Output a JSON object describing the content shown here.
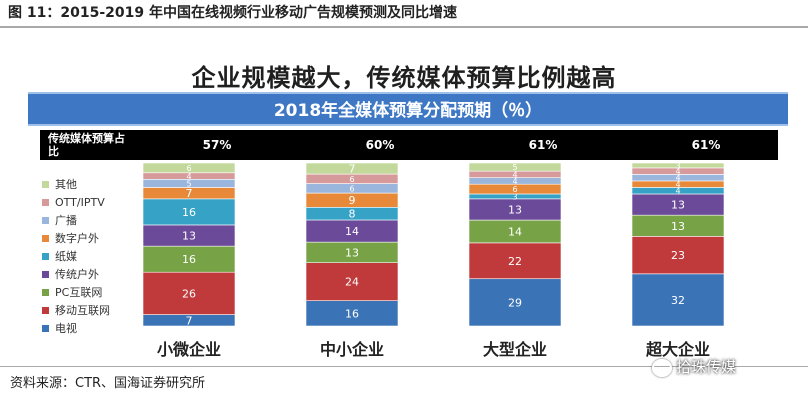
{
  "figure": {
    "title": "图 11：2015-2019 年中国在线视频行业移动广告规模预测及同比增速",
    "source": "资料来源：CTR、国海证券研究所",
    "watermark": "拾珠传媒"
  },
  "chart_data": {
    "type": "bar",
    "stacked": true,
    "headline": "企业规模越大，传统媒体预算比例越高",
    "title": "2018年全媒体预算分配预期（％）",
    "ratio_label": "传统媒体预算占比",
    "ratio_values": [
      "57%",
      "60%",
      "61%",
      "61%"
    ],
    "categories": [
      "小微企业",
      "中小企业",
      "大型企业",
      "超大企业"
    ],
    "legend_position": "left",
    "series": [
      {
        "name": "电视",
        "color": "#3a73b6",
        "values": [
          7,
          16,
          29,
          32
        ]
      },
      {
        "name": "移动互联网",
        "color": "#c0393b",
        "values": [
          26,
          24,
          22,
          23
        ]
      },
      {
        "name": "PC互联网",
        "color": "#77a346",
        "values": [
          16,
          13,
          14,
          13
        ]
      },
      {
        "name": "传统户外",
        "color": "#6b4a9a",
        "values": [
          13,
          14,
          13,
          13
        ]
      },
      {
        "name": "纸媒",
        "color": "#36a2c6",
        "values": [
          16,
          8,
          3,
          4
        ]
      },
      {
        "name": "数字户外",
        "color": "#e8893a",
        "values": [
          7,
          9,
          6,
          4
        ]
      },
      {
        "name": "广播",
        "color": "#9ab6dc",
        "values": [
          5,
          6,
          4,
          4
        ]
      },
      {
        "name": "OTT/IPTV",
        "color": "#d79a9b",
        "values": [
          4,
          6,
          4,
          4
        ]
      },
      {
        "name": "其他",
        "color": "#c3d89b",
        "values": [
          6,
          7,
          5,
          3
        ]
      }
    ],
    "legend_order": [
      "其他",
      "OTT/IPTV",
      "广播",
      "数字户外",
      "纸媒",
      "传统户外",
      "PC互联网",
      "移动互联网",
      "电视"
    ]
  }
}
